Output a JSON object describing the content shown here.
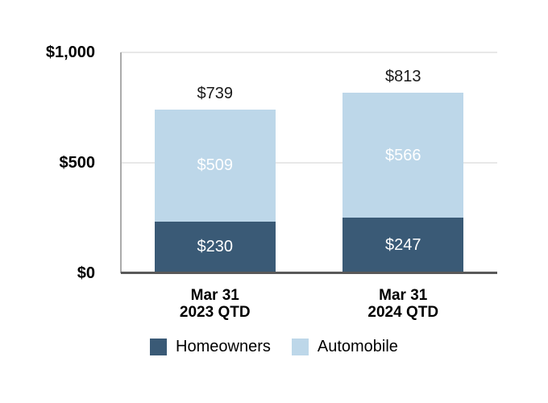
{
  "colors": {
    "homeowners": "#3a5a76",
    "automobile": "#bdd7e9",
    "gridline": "#e8e8e8",
    "vertical_axis": "#ababab",
    "horizontal_axis": "#595959",
    "segment_label": "#ffffff",
    "total_label": "#1a1a1a"
  },
  "legend": {
    "items": [
      {
        "label": "Homeowners",
        "color_key": "homeowners"
      },
      {
        "label": "Automobile",
        "color_key": "automobile"
      }
    ]
  },
  "chart_data": {
    "type": "bar",
    "stacked": true,
    "title": "",
    "xlabel": "",
    "ylabel": "",
    "ylim": [
      0,
      1000
    ],
    "grid": true,
    "legend_position": "bottom",
    "categories": [
      {
        "lines": [
          "Mar 31",
          "2023 QTD"
        ]
      },
      {
        "lines": [
          "Mar 31",
          "2024 QTD"
        ]
      }
    ],
    "series": [
      {
        "name": "Homeowners",
        "values": [
          230,
          247
        ],
        "color": "#3a5a76",
        "label_color": "#ffffff"
      },
      {
        "name": "Automobile",
        "values": [
          509,
          566
        ],
        "color": "#bdd7e9",
        "label_color": "#ffffff"
      }
    ],
    "totals": [
      739,
      813
    ],
    "y_ticks": [
      {
        "value": 0,
        "label": "$0"
      },
      {
        "value": 500,
        "label": "$500"
      },
      {
        "value": 1000,
        "label": "$1,000"
      }
    ],
    "gridline_values": [
      500,
      1000
    ],
    "value_prefix": "$"
  }
}
